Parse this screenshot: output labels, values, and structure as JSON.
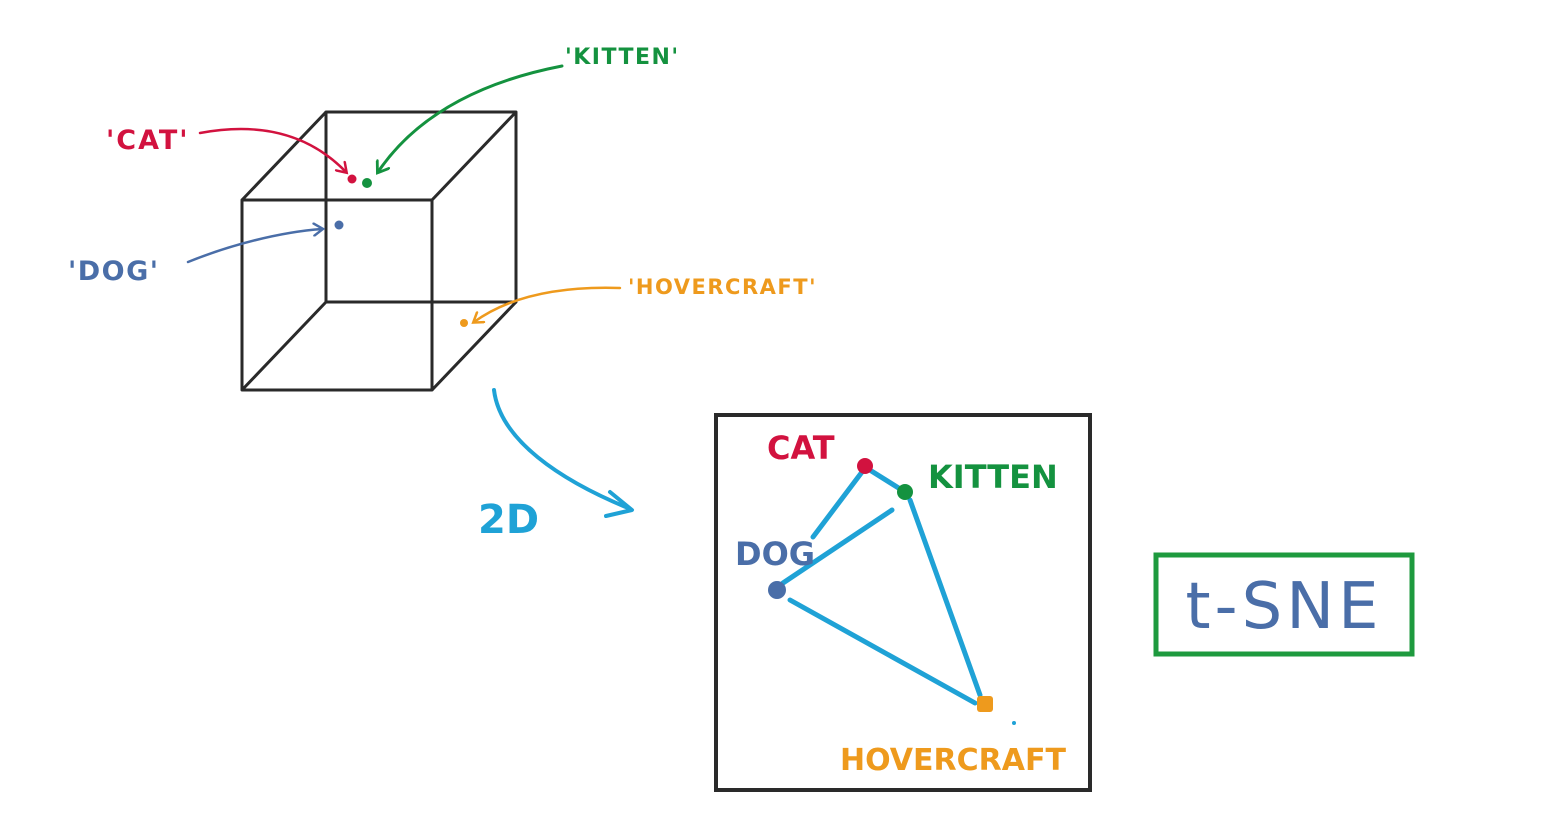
{
  "colors": {
    "cat": "#d2123f",
    "kitten": "#14923f",
    "dog": "#4a6ea8",
    "hovercraft": "#ee9a1d",
    "link": "#1fa2d6",
    "box": "#2a2a2a",
    "tsne_border": "#1e9a3e",
    "tsne_text": "#4a6ea8"
  },
  "cube": {
    "labels": {
      "cat": "'CAT'",
      "kitten": "'KITTEN'",
      "dog": "'DOG'",
      "hovercraft": "'HOVERCRAFT'"
    }
  },
  "arrow_label": "2D",
  "plot2d": {
    "labels": {
      "cat": "CAT",
      "kitten": "KITTEN",
      "dog": "DOG",
      "hovercraft": "HOVERCRAFT"
    }
  },
  "method": {
    "text": "t-SNE"
  }
}
